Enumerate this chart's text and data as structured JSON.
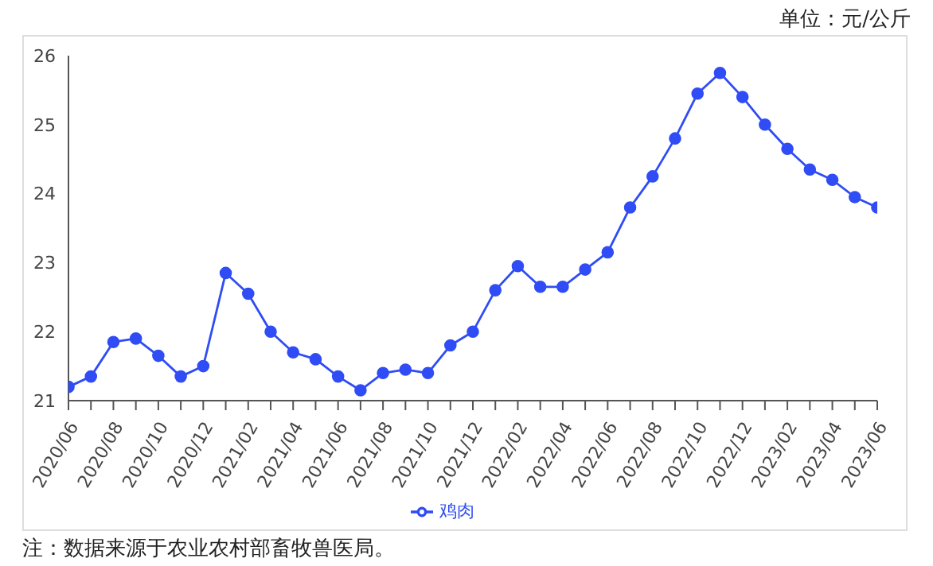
{
  "chart_data": {
    "type": "line",
    "subtitle": "单位：元/公斤",
    "annotations": [
      "注：数据来源于农业农村部畜牧兽医局。"
    ],
    "categories": [
      "2020/06",
      null,
      "2020/08",
      null,
      "2020/10",
      null,
      "2020/12",
      null,
      "2021/02",
      null,
      "2021/04",
      null,
      "2021/06",
      null,
      "2021/08",
      null,
      "2021/10",
      null,
      "2021/12",
      null,
      "2022/02",
      null,
      "2022/04",
      null,
      "2022/06",
      null,
      "2022/08",
      null,
      "2022/10",
      null,
      "2022/12",
      null,
      "2023/02",
      null,
      "2023/04",
      null,
      "2023/06"
    ],
    "series": [
      {
        "name": "鸡肉",
        "color": "#2f4cf5",
        "values": [
          21.2,
          21.35,
          21.85,
          21.9,
          21.65,
          21.35,
          21.5,
          22.85,
          22.55,
          22.0,
          21.7,
          21.6,
          21.35,
          21.15,
          21.4,
          21.45,
          21.4,
          21.8,
          22.0,
          22.6,
          22.95,
          22.65,
          22.65,
          22.9,
          23.15,
          23.8,
          24.25,
          24.8,
          25.45,
          25.75,
          25.4,
          25.0,
          24.65,
          24.35,
          24.2,
          23.95,
          23.8
        ]
      }
    ],
    "ylim": [
      21,
      26
    ],
    "yticks": [
      21,
      22,
      23,
      24,
      25,
      26
    ],
    "grid": false,
    "legend": "bottom",
    "marker": "circle",
    "line_style": "solid"
  }
}
